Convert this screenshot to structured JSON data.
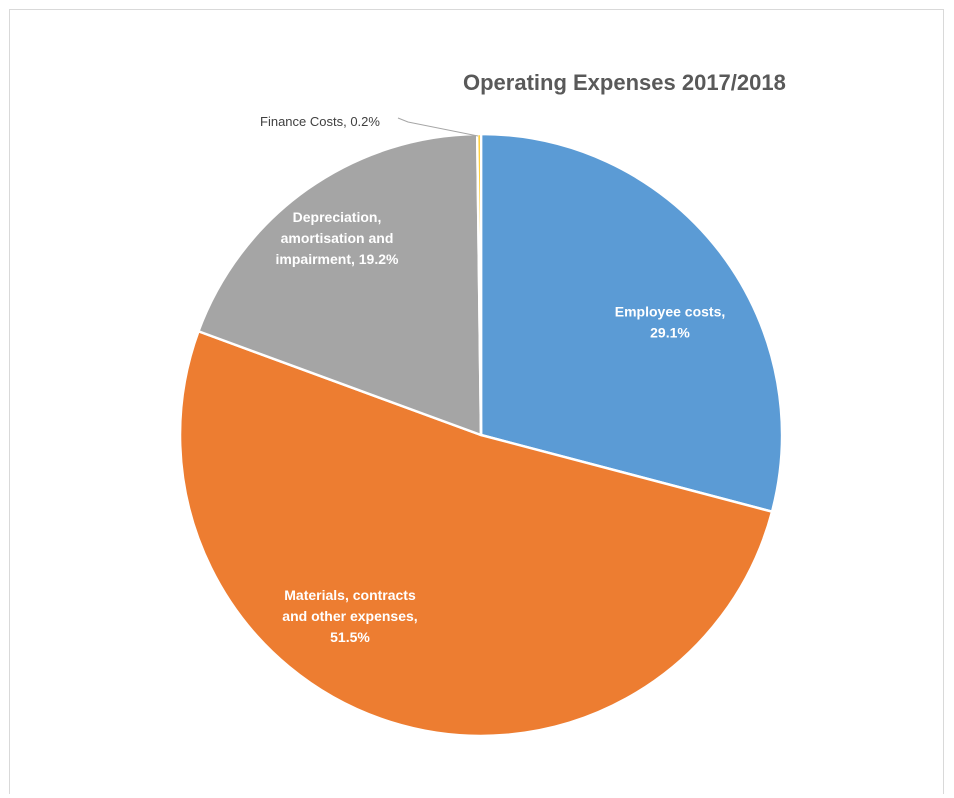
{
  "chart_data": {
    "type": "pie",
    "title": "Operating Expenses 2017/2018",
    "slices": [
      {
        "label": "Employee costs, 29.1%",
        "lines": [
          "Employee costs,",
          "29.1%"
        ],
        "value": 29.1,
        "color": "#5b9bd5"
      },
      {
        "label": "Materials, contracts and other expenses, 51.5%",
        "lines": [
          "Materials, contracts",
          "and other expenses,",
          "51.5%"
        ],
        "value": 51.5,
        "color": "#ed7d31"
      },
      {
        "label": "Depreciation, amortisation and impairment, 19.2%",
        "lines": [
          "Depreciation,",
          "amortisation and",
          "impairment, 19.2%"
        ],
        "value": 19.2,
        "color": "#a5a5a5"
      },
      {
        "label": "Finance Costs, 0.2%",
        "lines": [
          "Finance Costs, 0.2%"
        ],
        "value": 0.2,
        "color": "#ffc000"
      }
    ],
    "legend": "none",
    "start_angle": "12 o'clock",
    "direction": "clockwise"
  }
}
